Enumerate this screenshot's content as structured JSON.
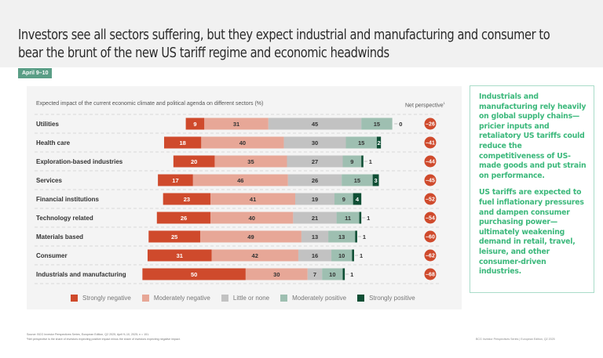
{
  "header": {
    "title": "Investors see all sectors suffering, but they expect industrial and manufacturing and consumer to bear the brunt of the new US tariff regime and economic headwinds",
    "date_badge": "April 9–10"
  },
  "colors": {
    "strongly_negative": "#cf4a2c",
    "moderately_negative": "#e7a797",
    "little_or_none": "#c2c2c2",
    "moderately_positive": "#9ebfb1",
    "strongly_positive": "#0f4f35",
    "net_badge": "#cf4a2c",
    "callout_text": "#3bb87b",
    "badge_bg": "#5a9e86"
  },
  "chart_data": {
    "type": "bar",
    "subtype": "diverging-stacked-horizontal",
    "title": "Expected impact of the current economic climate and political agenda on different sectors (%)",
    "net_column_label": "Net perspective",
    "net_column_footnote_mark": "1",
    "categories": [
      "Utilities",
      "Health care",
      "Exploration-based industries",
      "Services",
      "Financial institutions",
      "Technology related",
      "Materials based",
      "Consumer",
      "Industrials and manufacturing"
    ],
    "series": [
      {
        "name": "Strongly negative",
        "key": "strongly_negative",
        "values": [
          9,
          18,
          20,
          17,
          23,
          26,
          25,
          31,
          50
        ]
      },
      {
        "name": "Moderately negative",
        "key": "moderately_negative",
        "values": [
          31,
          40,
          35,
          46,
          41,
          40,
          49,
          42,
          30
        ]
      },
      {
        "name": "Little or none",
        "key": "little_or_none",
        "values": [
          45,
          30,
          27,
          26,
          19,
          21,
          13,
          16,
          7
        ]
      },
      {
        "name": "Moderately positive",
        "key": "moderately_positive",
        "values": [
          15,
          15,
          9,
          15,
          9,
          11,
          13,
          10,
          10
        ]
      },
      {
        "name": "Strongly positive",
        "key": "strongly_positive",
        "values": [
          0,
          2,
          1,
          3,
          4,
          1,
          1,
          1,
          1
        ]
      }
    ],
    "net_perspective": [
      -26,
      -41,
      -44,
      -45,
      -52,
      -54,
      -60,
      -62,
      -68
    ],
    "net_labels": [
      "–26",
      "–41",
      "–44",
      "–45",
      "–52",
      "–54",
      "–60",
      "–62",
      "–68"
    ],
    "xlabel": "",
    "ylabel": "",
    "legend_position": "bottom",
    "grid": "dashed row separators"
  },
  "callout": {
    "paragraphs": [
      "Industrials and manufacturing rely heavily on global supply chains—pricier inputs and retaliatory US tariffs could reduce the competitiveness of US-made goods and put strain on performance.",
      "US tariffs are expected to fuel inflationary pressures and dampen consumer purchasing power—ultimately weakening demand in retail, travel, leisure, and other consumer-driven industries."
    ]
  },
  "footer": {
    "source": "Source: BCG Investor Perspectives Series, European Edition, Q2 2025, April 9–10, 2025; n = 151.",
    "note": "¹Net perspective is the share of investors expecting positive impact minus the share of investors expecting negative impact.",
    "right": "BCG Investor Perspectives Series | European Edition, Q2 2025"
  }
}
